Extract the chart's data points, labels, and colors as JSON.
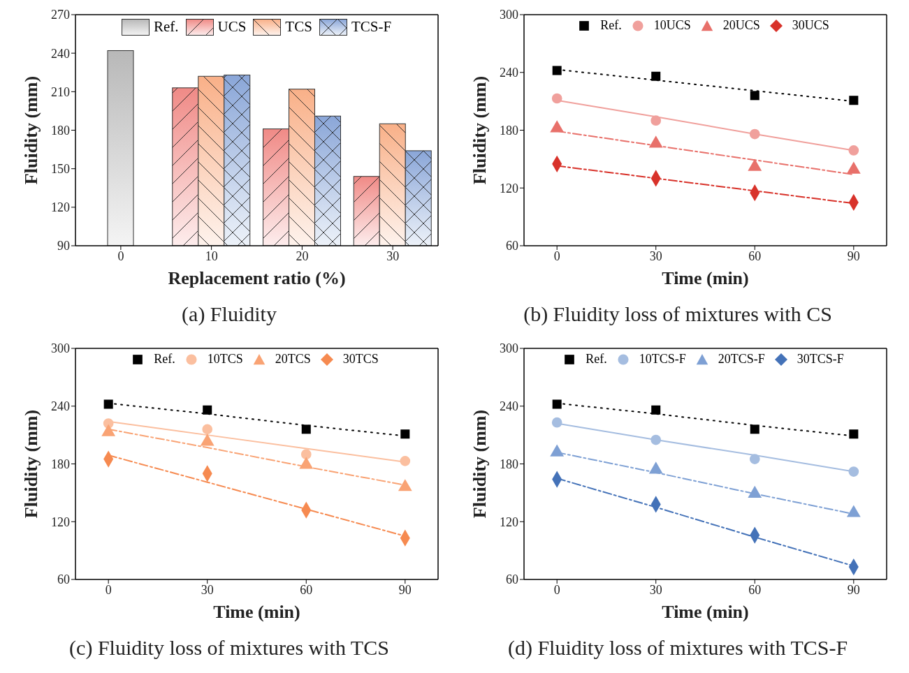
{
  "chart_data": [
    {
      "type": "bar",
      "title": "(a) Fluidity",
      "xlabel": "Replacement ratio (%)",
      "ylabel": "Fluidity (mm)",
      "categories": [
        "0",
        "10",
        "20",
        "30"
      ],
      "ylim": [
        90,
        270
      ],
      "yticks": [
        90,
        120,
        150,
        180,
        210,
        240,
        270
      ],
      "legend": "top",
      "series": [
        {
          "name": "Ref.",
          "color": "#b8b8b8",
          "values": [
            242,
            null,
            null,
            null
          ]
        },
        {
          "name": "UCS",
          "color": "#f08a86",
          "values": [
            null,
            213,
            181,
            144
          ]
        },
        {
          "name": "TCS",
          "color": "#f9b088",
          "values": [
            null,
            222,
            212,
            185
          ]
        },
        {
          "name": "TCS-F",
          "color": "#8aa6d8",
          "values": [
            null,
            223,
            191,
            164
          ]
        }
      ]
    },
    {
      "type": "scatter",
      "title": "(b) Fluidity loss of mixtures with CS",
      "xlabel": "Time  (min)",
      "ylabel": "Fluidity (mm)",
      "x": [
        0,
        30,
        60,
        90
      ],
      "xlim": [
        -10,
        100
      ],
      "xticks": [
        0,
        30,
        60,
        90
      ],
      "ylim": [
        60,
        300
      ],
      "yticks": [
        60,
        120,
        180,
        240,
        300
      ],
      "legend": "top",
      "series": [
        {
          "name": "Ref.",
          "color": "#000000",
          "marker": "square",
          "values": [
            242,
            236,
            216,
            211
          ]
        },
        {
          "name": "10UCS",
          "color": "#f0a09c",
          "marker": "circle",
          "values": [
            213,
            190,
            176,
            159
          ]
        },
        {
          "name": "20UCS",
          "color": "#e8706a",
          "marker": "triangle",
          "values": [
            182,
            166,
            142,
            139
          ]
        },
        {
          "name": "30UCS",
          "color": "#d8322a",
          "marker": "diamond",
          "values": [
            145,
            130,
            115,
            105
          ]
        },
        {
          "type": "line",
          "color": "#000000",
          "line_style": "dotted",
          "marker": "none",
          "values": [
            243,
            232,
            221,
            210
          ]
        },
        {
          "type": "line",
          "color": "#f0a09c",
          "line_style": "solid",
          "marker": "none",
          "values": [
            211,
            194,
            176,
            159
          ]
        },
        {
          "type": "line",
          "color": "#e8706a",
          "line_style": "dashed",
          "marker": "none",
          "values": [
            179,
            164,
            149,
            134
          ]
        },
        {
          "type": "line",
          "color": "#d8322a",
          "line_style": "dashed",
          "marker": "none",
          "values": [
            143,
            130,
            117,
            104
          ]
        }
      ]
    },
    {
      "type": "scatter",
      "title": "(c) Fluidity loss of mixtures with TCS",
      "xlabel": "Time  (min)",
      "ylabel": "Fluidity  (mm)",
      "x": [
        0,
        30,
        60,
        90
      ],
      "xlim": [
        -10,
        100
      ],
      "xticks": [
        0,
        30,
        60,
        90
      ],
      "ylim": [
        60,
        300
      ],
      "yticks": [
        60,
        120,
        180,
        240,
        300
      ],
      "legend": "top",
      "series": [
        {
          "name": "Ref.",
          "color": "#000000",
          "marker": "square",
          "values": [
            242,
            236,
            216,
            211
          ]
        },
        {
          "name": "10TCS",
          "color": "#fbbf9f",
          "marker": "circle",
          "values": [
            222,
            216,
            190,
            183
          ]
        },
        {
          "name": "20TCS",
          "color": "#f9a374",
          "marker": "triangle",
          "values": [
            213,
            203,
            179,
            156
          ]
        },
        {
          "name": "30TCS",
          "color": "#f68a50",
          "marker": "diamond",
          "values": [
            185,
            170,
            132,
            103
          ]
        },
        {
          "type": "line",
          "color": "#000000",
          "line_style": "dotted",
          "marker": "none",
          "values": [
            243,
            232,
            220,
            209
          ]
        },
        {
          "type": "line",
          "color": "#fbbf9f",
          "line_style": "solid",
          "marker": "none",
          "values": [
            224,
            210,
            196,
            182
          ]
        },
        {
          "type": "line",
          "color": "#f9a374",
          "line_style": "dashed",
          "marker": "none",
          "values": [
            216,
            197,
            177,
            158
          ]
        },
        {
          "type": "line",
          "color": "#f68a50",
          "line_style": "dashed",
          "marker": "none",
          "values": [
            189,
            161,
            133,
            105
          ]
        }
      ]
    },
    {
      "type": "scatter",
      "title": "(d) Fluidity loss of mixtures with TCS-F",
      "xlabel": "Time  (min)",
      "ylabel": "Fluidity (mm)",
      "x": [
        0,
        30,
        60,
        90
      ],
      "xlim": [
        -10,
        100
      ],
      "xticks": [
        0,
        30,
        60,
        90
      ],
      "ylim": [
        60,
        300
      ],
      "yticks": [
        60,
        120,
        180,
        240,
        300
      ],
      "legend": "top",
      "series": [
        {
          "name": "Ref.",
          "color": "#000000",
          "marker": "square",
          "values": [
            242,
            236,
            216,
            211
          ]
        },
        {
          "name": "10TCS-F",
          "color": "#a5bde0",
          "marker": "circle",
          "values": [
            223,
            205,
            185,
            172
          ]
        },
        {
          "name": "20TCS-F",
          "color": "#7ea0d4",
          "marker": "triangle",
          "values": [
            192,
            174,
            149,
            129
          ]
        },
        {
          "name": "30TCS-F",
          "color": "#4472b8",
          "marker": "diamond",
          "values": [
            164,
            138,
            106,
            73
          ]
        },
        {
          "type": "line",
          "color": "#000000",
          "line_style": "dotted",
          "marker": "none",
          "values": [
            243,
            232,
            220,
            209
          ]
        },
        {
          "type": "line",
          "color": "#a5bde0",
          "line_style": "solid",
          "marker": "none",
          "values": [
            222,
            205,
            189,
            172
          ]
        },
        {
          "type": "line",
          "color": "#7ea0d4",
          "line_style": "dashed",
          "marker": "none",
          "values": [
            192,
            171,
            149,
            128
          ]
        },
        {
          "type": "line",
          "color": "#4472b8",
          "line_style": "dashed",
          "marker": "none",
          "values": [
            165,
            135,
            104,
            74
          ]
        }
      ]
    }
  ]
}
